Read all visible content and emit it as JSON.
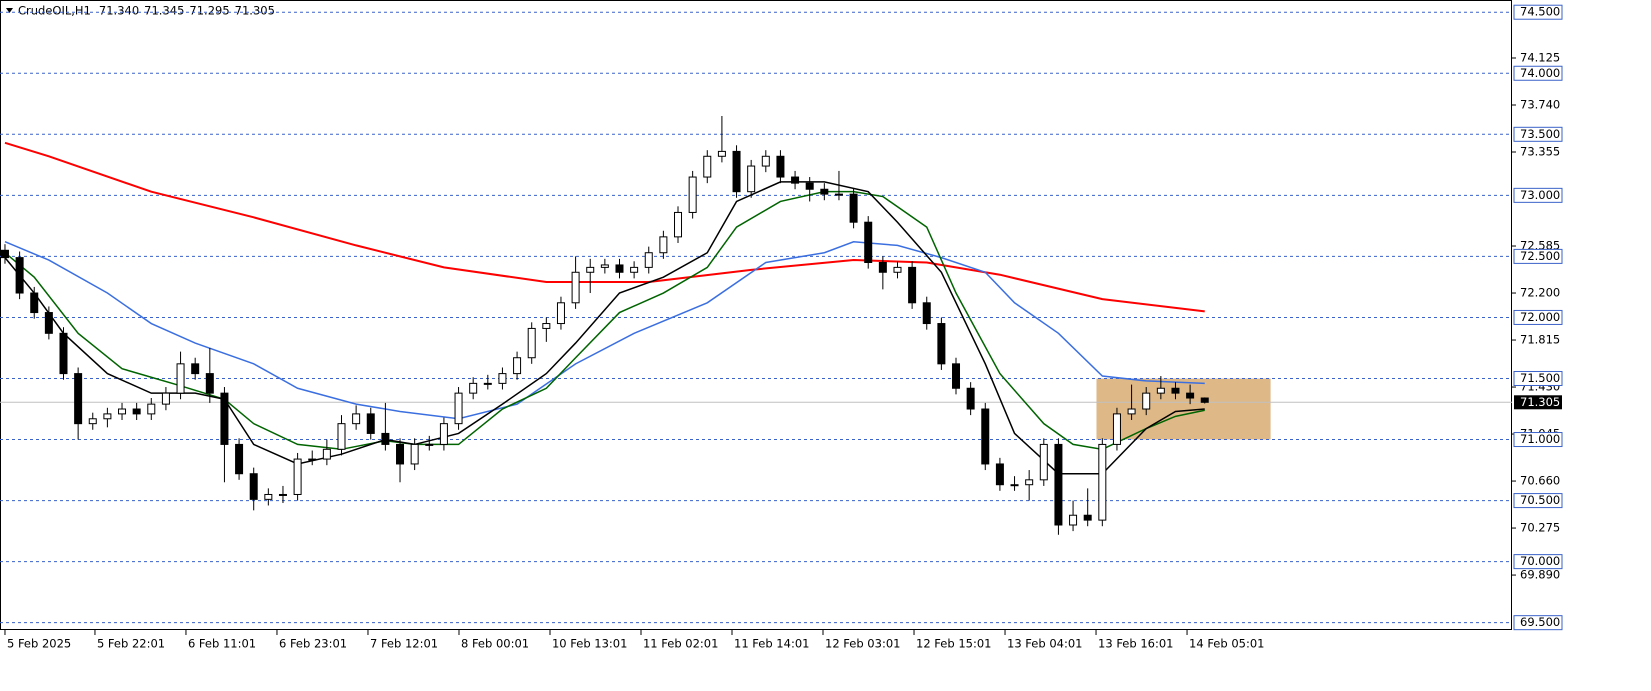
{
  "chart_data": {
    "type": "candlestick",
    "symbol": "CrudeOIL,H1",
    "header_values": [
      "71.340",
      "71.345",
      "71.295",
      "71.305"
    ],
    "xlim": [
      -0.34,
      103
    ],
    "ylim": [
      69.44,
      74.6
    ],
    "xticks": [
      {
        "value": 0,
        "label": "5 Feb 2025"
      },
      {
        "value": 6.15,
        "label": "5 Feb 22:01"
      },
      {
        "value": 12.37,
        "label": "6 Feb 11:01"
      },
      {
        "value": 18.59,
        "label": "6 Feb 23:01"
      },
      {
        "value": 24.81,
        "label": "7 Feb 12:01"
      },
      {
        "value": 31.03,
        "label": "8 Feb 00:01"
      },
      {
        "value": 37.25,
        "label": "10 Feb 13:01"
      },
      {
        "value": 43.47,
        "label": "11 Feb 02:01"
      },
      {
        "value": 49.69,
        "label": "11 Feb 14:01"
      },
      {
        "value": 55.91,
        "label": "12 Feb 03:01"
      },
      {
        "value": 62.13,
        "label": "12 Feb 15:01"
      },
      {
        "value": 68.35,
        "label": "13 Feb 04:01"
      },
      {
        "value": 74.57,
        "label": "13 Feb 16:01"
      },
      {
        "value": 80.79,
        "label": "14 Feb 05:01"
      }
    ],
    "yticks": [
      74.125,
      {
        "value": 73.74,
        "label": "73.740"
      },
      73.355,
      72.585,
      {
        "value": 72.2,
        "label": "72.200"
      },
      71.815,
      {
        "value": 71.43,
        "label": "71.430"
      },
      71.045,
      {
        "value": 70.66,
        "label": "70.660"
      },
      70.275,
      {
        "value": 69.89,
        "label": "69.890"
      }
    ],
    "levels": [
      {
        "value": 74.5,
        "label": "74.500"
      },
      {
        "value": 74.0,
        "label": "74.000"
      },
      {
        "value": 73.5,
        "label": "73.500"
      },
      {
        "value": 73.0,
        "label": "73.000"
      },
      {
        "value": 72.5,
        "label": "72.500"
      },
      {
        "value": 72.0,
        "label": "72.000"
      },
      {
        "value": 71.5,
        "label": "71.500"
      },
      {
        "value": 71.0,
        "label": "71.000"
      },
      {
        "value": 70.5,
        "label": "70.500"
      },
      {
        "value": 70.0,
        "label": "70.000"
      },
      {
        "value": 69.5,
        "label": "69.500"
      }
    ],
    "level_color": "#3a62c9",
    "current_price": {
      "value": 71.305,
      "label": "71.305"
    },
    "zone": {
      "x": [
        74.6,
        86.5
      ],
      "y": [
        71.0,
        71.5
      ],
      "color": "#deb887"
    },
    "open": [
      72.55,
      72.49,
      72.2,
      72.04,
      71.87,
      71.54,
      71.13,
      71.17,
      71.21,
      71.25,
      71.21,
      71.29,
      71.38,
      71.62,
      71.54,
      71.38,
      70.96,
      70.72,
      70.51,
      70.55,
      70.55,
      70.84,
      70.84,
      70.92,
      71.13,
      71.21,
      71.05,
      70.96,
      70.8,
      70.96,
      70.96,
      71.13,
      71.38,
      71.46,
      71.46,
      71.54,
      71.67,
      71.91,
      71.95,
      72.12,
      72.37,
      72.41,
      72.43,
      72.37,
      72.41,
      72.53,
      72.66,
      72.86,
      73.15,
      73.32,
      73.36,
      73.03,
      73.24,
      73.32,
      73.15,
      73.1,
      73.05,
      73.01,
      73.01,
      72.78,
      72.45,
      72.37,
      72.41,
      72.12,
      71.95,
      71.62,
      71.42,
      71.25,
      70.8,
      70.63,
      70.63,
      70.67,
      70.96,
      70.3,
      70.38,
      70.34,
      70.96,
      71.21,
      71.25,
      71.38,
      71.42,
      71.38,
      71.34
    ],
    "high": [
      72.6,
      72.54,
      72.25,
      72.09,
      71.92,
      71.59,
      71.22,
      71.26,
      71.3,
      71.3,
      71.34,
      71.43,
      71.72,
      71.67,
      71.75,
      71.43,
      71.01,
      70.77,
      70.6,
      70.62,
      70.89,
      70.91,
      71.0,
      71.2,
      71.28,
      71.26,
      71.3,
      71.01,
      71.01,
      71.03,
      71.18,
      71.43,
      71.51,
      71.53,
      71.59,
      71.72,
      71.96,
      72.0,
      72.17,
      72.5,
      72.48,
      72.48,
      72.48,
      72.46,
      72.58,
      72.71,
      72.91,
      73.2,
      73.37,
      73.65,
      73.41,
      73.29,
      73.37,
      73.37,
      73.2,
      73.15,
      73.1,
      73.2,
      73.06,
      72.83,
      72.5,
      72.46,
      72.46,
      72.17,
      72.0,
      71.67,
      71.47,
      71.3,
      70.85,
      70.7,
      70.75,
      71.01,
      71.01,
      70.5,
      70.6,
      71.01,
      71.26,
      71.45,
      71.43,
      71.52,
      71.47,
      71.45,
      71.345
    ],
    "low": [
      72.44,
      72.15,
      71.99,
      71.82,
      71.49,
      71.0,
      71.08,
      71.1,
      71.16,
      71.16,
      71.16,
      71.24,
      71.33,
      71.49,
      71.3,
      70.65,
      70.67,
      70.42,
      70.46,
      70.48,
      70.5,
      70.79,
      70.79,
      70.87,
      71.08,
      71.0,
      70.91,
      70.65,
      70.75,
      70.91,
      70.91,
      71.08,
      71.33,
      71.41,
      71.41,
      71.49,
      71.62,
      71.8,
      71.9,
      72.07,
      72.2,
      72.36,
      72.32,
      72.32,
      72.36,
      72.48,
      72.61,
      72.81,
      73.1,
      73.27,
      72.98,
      72.98,
      73.19,
      73.1,
      73.05,
      72.95,
      72.96,
      72.96,
      72.73,
      72.4,
      72.23,
      72.32,
      72.07,
      71.9,
      71.57,
      71.37,
      71.2,
      70.75,
      70.58,
      70.58,
      70.5,
      70.62,
      70.22,
      70.25,
      70.29,
      70.29,
      70.91,
      71.16,
      71.2,
      71.33,
      71.33,
      71.29,
      71.295
    ],
    "close": [
      72.49,
      72.2,
      72.04,
      71.87,
      71.54,
      71.13,
      71.17,
      71.21,
      71.25,
      71.21,
      71.29,
      71.38,
      71.62,
      71.54,
      71.38,
      70.96,
      70.72,
      70.51,
      70.55,
      70.55,
      70.84,
      70.84,
      70.92,
      71.13,
      71.21,
      71.05,
      70.96,
      70.8,
      70.96,
      70.96,
      71.13,
      71.38,
      71.46,
      71.46,
      71.54,
      71.67,
      71.91,
      71.95,
      72.12,
      72.37,
      72.41,
      72.43,
      72.37,
      72.41,
      72.53,
      72.66,
      72.86,
      73.15,
      73.32,
      73.36,
      73.03,
      73.24,
      73.32,
      73.15,
      73.1,
      73.05,
      73.01,
      73.01,
      72.78,
      72.45,
      72.37,
      72.41,
      72.12,
      71.95,
      71.62,
      71.42,
      71.25,
      70.8,
      70.63,
      70.63,
      70.67,
      70.96,
      70.3,
      70.38,
      70.34,
      70.96,
      71.21,
      71.25,
      71.38,
      71.42,
      71.38,
      71.34,
      71.305
    ],
    "series": [
      {
        "color": "#ff0000",
        "x": [
          0,
          3,
          10,
          17,
          24,
          30,
          37,
          44,
          51,
          58,
          63,
          68,
          75,
          82
        ],
        "values": [
          73.43,
          73.32,
          73.03,
          72.82,
          72.59,
          72.41,
          72.29,
          72.29,
          72.39,
          72.47,
          72.45,
          72.35,
          72.15,
          72.05
        ]
      },
      {
        "color": "#3b6fe0",
        "x": [
          0,
          3,
          7,
          10,
          13,
          17,
          20,
          24,
          27,
          31,
          35,
          39,
          43,
          48,
          52,
          56,
          58,
          61,
          64,
          67,
          69,
          72,
          75,
          78,
          82
        ],
        "values": [
          72.62,
          72.47,
          72.2,
          71.95,
          71.79,
          71.62,
          71.42,
          71.29,
          71.23,
          71.17,
          71.29,
          71.62,
          71.87,
          72.12,
          72.45,
          72.53,
          72.62,
          72.59,
          72.49,
          72.37,
          72.12,
          71.87,
          71.52,
          71.48,
          71.46
        ]
      },
      {
        "color": "#006400",
        "x": [
          0,
          2,
          5,
          8,
          12,
          15,
          17,
          20,
          23,
          26,
          28,
          31,
          34,
          37,
          39,
          42,
          45,
          48,
          50,
          53,
          56,
          58,
          60,
          63,
          65,
          68,
          71,
          73,
          75,
          78,
          80,
          82
        ],
        "values": [
          72.53,
          72.33,
          71.87,
          71.58,
          71.44,
          71.33,
          71.13,
          70.96,
          70.92,
          70.99,
          70.96,
          70.96,
          71.25,
          71.42,
          71.67,
          72.04,
          72.2,
          72.41,
          72.74,
          72.95,
          73.03,
          73.03,
          72.99,
          72.74,
          72.2,
          71.54,
          71.13,
          70.96,
          70.92,
          71.09,
          71.19,
          71.24
        ]
      },
      {
        "color": "#000000",
        "x": [
          0,
          2,
          4,
          7,
          10,
          13,
          15,
          17,
          20,
          23,
          26,
          28,
          31,
          34,
          37,
          39,
          42,
          45,
          48,
          50,
          53,
          56,
          59,
          61,
          64,
          67,
          69,
          72,
          75,
          78,
          80,
          82
        ],
        "values": [
          72.49,
          72.2,
          71.87,
          71.54,
          71.38,
          71.38,
          71.33,
          70.96,
          70.8,
          70.88,
          71.0,
          70.96,
          71.05,
          71.29,
          71.54,
          71.79,
          72.2,
          72.33,
          72.53,
          72.95,
          73.11,
          73.11,
          73.03,
          72.78,
          72.37,
          71.62,
          71.05,
          70.72,
          70.72,
          71.09,
          71.23,
          71.25
        ]
      }
    ]
  }
}
